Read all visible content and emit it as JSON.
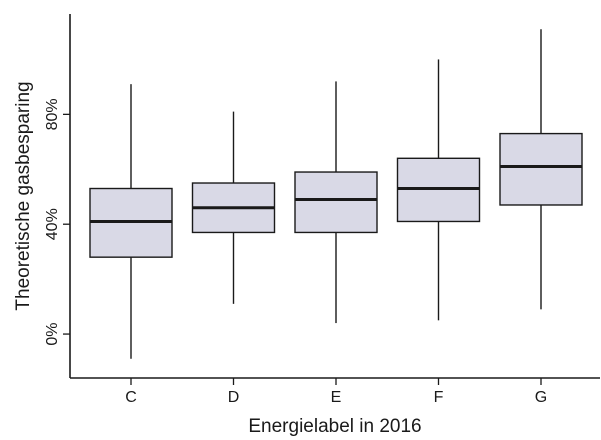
{
  "chart_data": {
    "type": "boxplot",
    "title": "",
    "xlabel": "Energielabel in 2016",
    "ylabel": "Theoretische gasbesparing",
    "categories": [
      "C",
      "D",
      "E",
      "F",
      "G"
    ],
    "boxes": [
      {
        "min": -9,
        "q1": 28,
        "median": 41,
        "q3": 53,
        "max": 91
      },
      {
        "min": 11,
        "q1": 37,
        "median": 46,
        "q3": 55,
        "max": 81
      },
      {
        "min": 4,
        "q1": 37,
        "median": 49,
        "q3": 59,
        "max": 92
      },
      {
        "min": 5,
        "q1": 41,
        "median": 53,
        "q3": 64,
        "max": 100
      },
      {
        "min": 9,
        "q1": 47,
        "median": 61,
        "q3": 73,
        "max": 111
      }
    ],
    "y_ticks": [
      0,
      40,
      80
    ],
    "y_tick_labels": [
      "0%",
      "40%",
      "80%"
    ],
    "ylim": [
      -16,
      118
    ],
    "grid": false,
    "legend": "none"
  }
}
